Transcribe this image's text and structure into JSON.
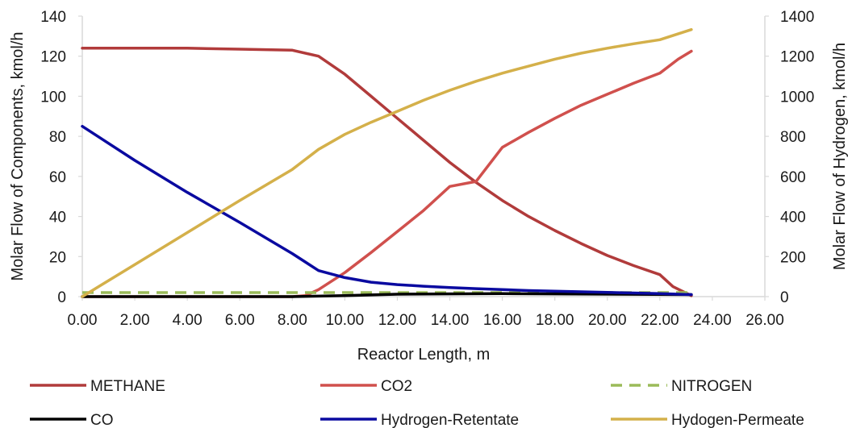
{
  "chart_data": {
    "type": "line",
    "xlabel": "Reactor Length, m",
    "ylabel_left": "Molar Flow of Components, kmol/h",
    "ylabel_right": "Molar Flow of Hydrogen, kmol/h",
    "xlim": [
      0,
      26
    ],
    "ylim_left": [
      0,
      140
    ],
    "ylim_right": [
      0,
      1400
    ],
    "x_ticks": [
      "0.00",
      "2.00",
      "4.00",
      "6.00",
      "8.00",
      "10.00",
      "12.00",
      "14.00",
      "16.00",
      "18.00",
      "20.00",
      "22.00",
      "24.00",
      "26.00"
    ],
    "y_left_ticks": [
      "0",
      "20",
      "40",
      "60",
      "80",
      "100",
      "120",
      "140"
    ],
    "y_right_ticks": [
      "0",
      "200",
      "400",
      "600",
      "800",
      "1000",
      "1200",
      "1400"
    ],
    "grid": false,
    "legend_position": "bottom",
    "series": [
      {
        "name": "METHANE",
        "axis": "left",
        "color": "#b13b3b",
        "dash": "solid",
        "points": [
          [
            0,
            124
          ],
          [
            2,
            124
          ],
          [
            4,
            124
          ],
          [
            6,
            123.5
          ],
          [
            8,
            123
          ],
          [
            9,
            120
          ],
          [
            10,
            111
          ],
          [
            11,
            100
          ],
          [
            12,
            89
          ],
          [
            13,
            78
          ],
          [
            14,
            67
          ],
          [
            15,
            57
          ],
          [
            16,
            48
          ],
          [
            17,
            40
          ],
          [
            18,
            33
          ],
          [
            19,
            26.5
          ],
          [
            20,
            20.5
          ],
          [
            21,
            15.5
          ],
          [
            22,
            11
          ],
          [
            22.5,
            5
          ],
          [
            23.2,
            0.5
          ]
        ]
      },
      {
        "name": "CO2",
        "axis": "left",
        "color": "#d0504d",
        "dash": "solid",
        "points": [
          [
            0,
            0
          ],
          [
            8,
            0
          ],
          [
            8.5,
            0.5
          ],
          [
            9,
            3.5
          ],
          [
            10,
            12
          ],
          [
            11,
            22
          ],
          [
            12,
            32.5
          ],
          [
            13,
            43
          ],
          [
            14,
            55
          ],
          [
            15,
            57.5
          ],
          [
            16,
            74.5
          ],
          [
            17,
            82
          ],
          [
            18,
            89
          ],
          [
            19,
            95.5
          ],
          [
            20,
            101
          ],
          [
            21,
            106.5
          ],
          [
            22,
            111.5
          ],
          [
            22.7,
            118.5
          ],
          [
            23.2,
            122.5
          ]
        ]
      },
      {
        "name": "NITROGEN",
        "axis": "left",
        "color": "#9bbb59",
        "dash": "dashed",
        "points": [
          [
            0,
            2
          ],
          [
            23.2,
            2
          ]
        ]
      },
      {
        "name": "CO",
        "axis": "left",
        "color": "#000000",
        "dash": "solid",
        "points": [
          [
            0,
            0
          ],
          [
            8,
            0
          ],
          [
            10,
            0.5
          ],
          [
            12,
            1.2
          ],
          [
            16,
            1.5
          ],
          [
            23.2,
            1
          ]
        ]
      },
      {
        "name": "Hydrogen-Retentate",
        "axis": "right",
        "color": "#0a0aa0",
        "dash": "solid",
        "points": [
          [
            0,
            850
          ],
          [
            2,
            680
          ],
          [
            4,
            520
          ],
          [
            6,
            370
          ],
          [
            8,
            215
          ],
          [
            9,
            130
          ],
          [
            10,
            95
          ],
          [
            11,
            72
          ],
          [
            12,
            60
          ],
          [
            13,
            52
          ],
          [
            14,
            45
          ],
          [
            15,
            40
          ],
          [
            16,
            35
          ],
          [
            17,
            30
          ],
          [
            18,
            27
          ],
          [
            19,
            24
          ],
          [
            20,
            21
          ],
          [
            21,
            18
          ],
          [
            22,
            15
          ],
          [
            23.2,
            10
          ]
        ]
      },
      {
        "name": "Hydogen-Permeate",
        "axis": "right",
        "color": "#d4b04a",
        "dash": "solid",
        "points": [
          [
            0,
            0
          ],
          [
            2,
            160
          ],
          [
            4,
            320
          ],
          [
            6,
            480
          ],
          [
            8,
            635
          ],
          [
            9,
            735
          ],
          [
            10,
            810
          ],
          [
            11,
            870
          ],
          [
            12,
            925
          ],
          [
            13,
            980
          ],
          [
            14,
            1030
          ],
          [
            15,
            1075
          ],
          [
            16,
            1115
          ],
          [
            17,
            1150
          ],
          [
            18,
            1185
          ],
          [
            19,
            1215
          ],
          [
            20,
            1240
          ],
          [
            21,
            1262
          ],
          [
            22,
            1282
          ],
          [
            23.2,
            1333
          ]
        ]
      }
    ]
  }
}
